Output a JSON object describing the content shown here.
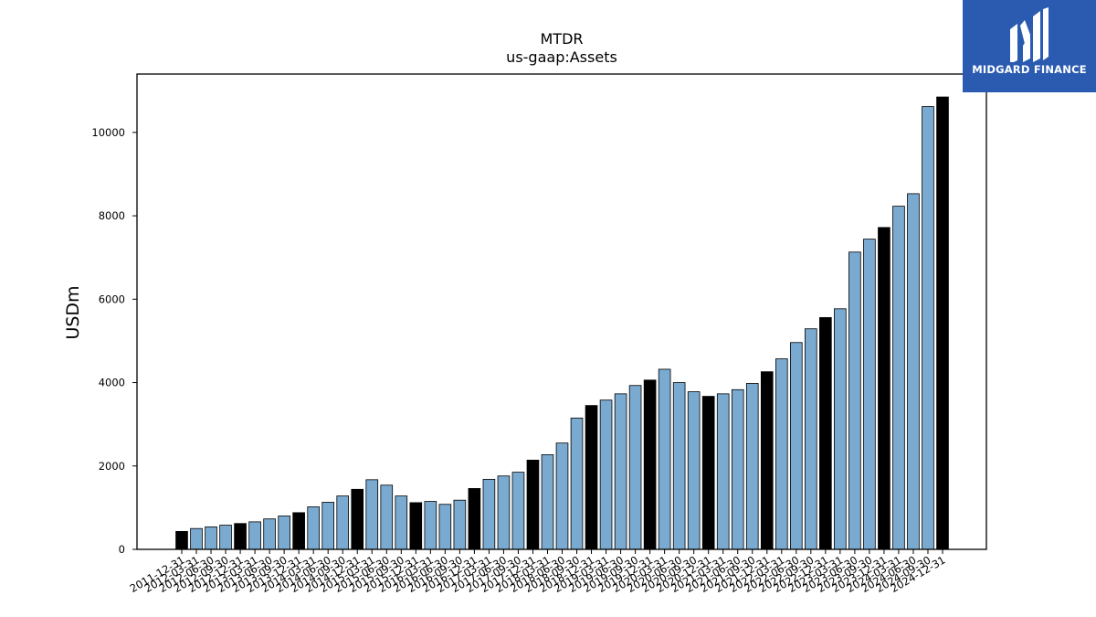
{
  "brand": {
    "name": "MIDGARD FINANCE",
    "bg_color": "#2a5bb0"
  },
  "chart_data": {
    "type": "bar",
    "title": "MTDR",
    "subtitle": "us-gaap:Assets",
    "xlabel": "",
    "ylabel": "USDm",
    "ylim": [
      0,
      11400
    ],
    "yticks": [
      0,
      2000,
      4000,
      6000,
      8000,
      10000
    ],
    "grid": false,
    "colors": {
      "quarter": "#7aaad0",
      "year_end": "#000000",
      "edge": "#000000"
    },
    "categories": [
      "2011-12-31",
      "2012-03-31",
      "2012-06-30",
      "2012-09-30",
      "2012-12-31",
      "2013-03-31",
      "2013-06-30",
      "2013-09-30",
      "2013-12-31",
      "2014-03-31",
      "2014-06-30",
      "2014-09-30",
      "2014-12-31",
      "2015-03-31",
      "2015-06-30",
      "2015-09-30",
      "2015-12-31",
      "2016-03-31",
      "2016-06-30",
      "2016-09-30",
      "2016-12-31",
      "2017-03-31",
      "2017-06-30",
      "2017-09-30",
      "2017-12-31",
      "2018-03-31",
      "2018-06-30",
      "2018-09-30",
      "2018-12-31",
      "2019-03-31",
      "2019-06-30",
      "2019-09-30",
      "2019-12-31",
      "2020-03-31",
      "2020-06-30",
      "2020-09-30",
      "2020-12-31",
      "2021-03-31",
      "2021-06-30",
      "2021-09-30",
      "2021-12-31",
      "2022-03-31",
      "2022-06-30",
      "2022-09-30",
      "2022-12-31",
      "2023-03-31",
      "2023-06-30",
      "2023-09-30",
      "2023-12-31",
      "2024-03-31",
      "2024-06-30",
      "2024-09-30",
      "2024-12-31"
    ],
    "values": [
      430,
      500,
      540,
      580,
      620,
      660,
      730,
      800,
      880,
      1020,
      1130,
      1280,
      1440,
      1670,
      1540,
      1280,
      1120,
      1150,
      1080,
      1180,
      1460,
      1680,
      1760,
      1850,
      2140,
      2270,
      2550,
      3150,
      3450,
      3580,
      3730,
      3930,
      4060,
      4320,
      4000,
      3780,
      3670,
      3730,
      3830,
      3980,
      4260,
      4570,
      4960,
      5290,
      5560,
      5770,
      7130,
      7440,
      7720,
      8230,
      8530,
      10620,
      10850
    ],
    "year_end": [
      true,
      false,
      false,
      false,
      true,
      false,
      false,
      false,
      true,
      false,
      false,
      false,
      true,
      false,
      false,
      false,
      true,
      false,
      false,
      false,
      true,
      false,
      false,
      false,
      true,
      false,
      false,
      false,
      true,
      false,
      false,
      false,
      true,
      false,
      false,
      false,
      true,
      false,
      false,
      false,
      true,
      false,
      false,
      false,
      true,
      false,
      false,
      false,
      true,
      false,
      false,
      false,
      true
    ]
  }
}
